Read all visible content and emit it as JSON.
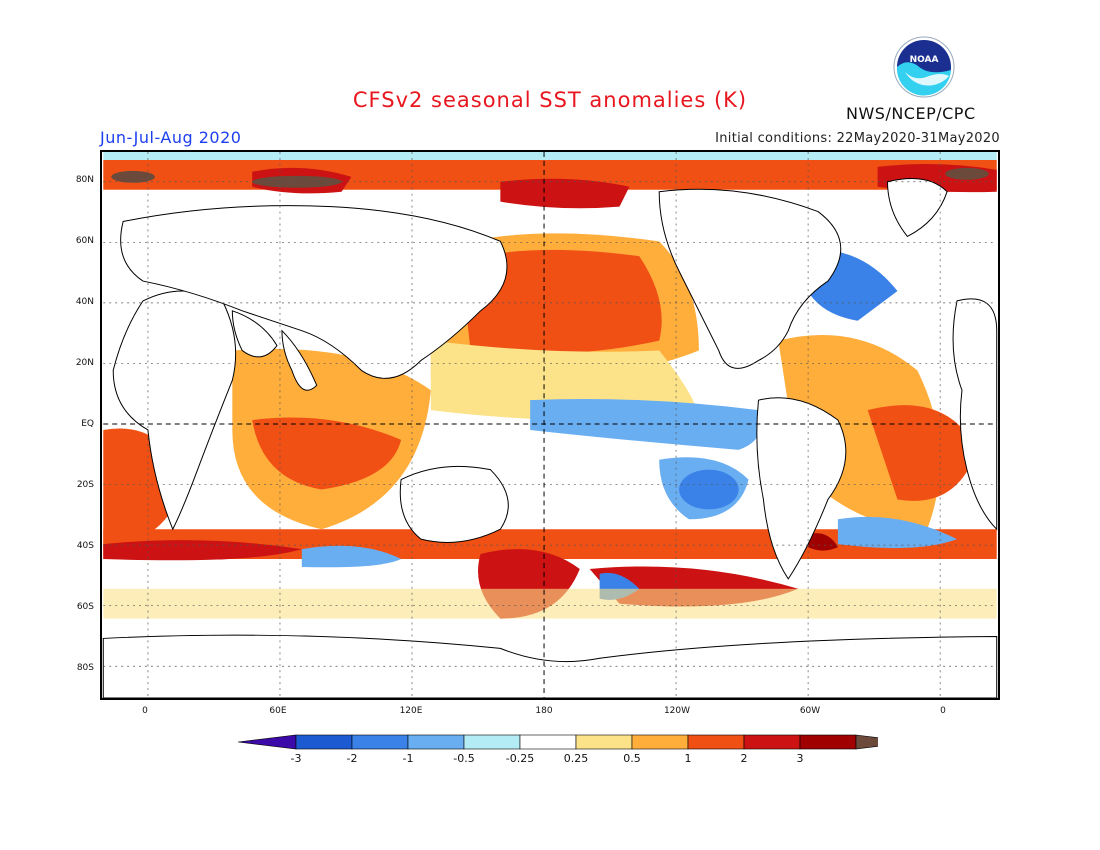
{
  "title": "CFSv2 seasonal SST anomalies (K)",
  "season": "Jun-Jul-Aug 2020",
  "initial_conditions": "Initial conditions: 22May2020-31May2020",
  "agency": "NWS/NCEP/CPC",
  "logo_text": "NOAA",
  "map": {
    "lat_labels": [
      "80N",
      "60N",
      "40N",
      "20N",
      "EQ",
      "20S",
      "40S",
      "60S",
      "80S"
    ],
    "lon_labels": [
      "0",
      "60E",
      "120E",
      "180",
      "120W",
      "60W",
      "0"
    ],
    "center_longitude": "180",
    "grid": "dotted"
  },
  "colorbar": {
    "labels": [
      "-3",
      "-2",
      "-1",
      "-0.5",
      "-0.25",
      "0.25",
      "0.5",
      "1",
      "2",
      "3"
    ],
    "colors": [
      "#3c0aa8",
      "#1c5ad2",
      "#3b82e8",
      "#6aaef2",
      "#b4ecf6",
      "#ffffff",
      "#fce38a",
      "#ffae3c",
      "#f05014",
      "#cc1212",
      "#a00000",
      "#6b4a3c"
    ]
  },
  "colors": {
    "title": "#e8161e",
    "season": "#1c3ff0",
    "land": "#ffffff",
    "coast": "#000000"
  }
}
